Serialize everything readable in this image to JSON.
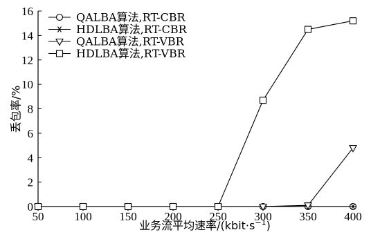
{
  "chart_data": {
    "type": "line",
    "x": [
      50,
      100,
      150,
      200,
      250,
      300,
      350,
      400
    ],
    "xlim": [
      50,
      400
    ],
    "ylim": [
      0,
      16
    ],
    "xticks": [
      50,
      100,
      150,
      200,
      250,
      300,
      350,
      400
    ],
    "yticks": [
      0,
      2,
      4,
      6,
      8,
      10,
      12,
      14,
      16
    ],
    "xlabel": "业务流平均速率/(kbit·s",
    "xlabel_sup": "−1",
    "xlabel_end": ")",
    "ylabel": "丢包率/%",
    "grid": false,
    "legend_position": "top-left",
    "series": [
      {
        "name": "QALBA算法,RT-CBR",
        "marker": "circle",
        "values": [
          0,
          0,
          0,
          0,
          0,
          0,
          0,
          0
        ]
      },
      {
        "name": "HDLBA算法,RT-CBR",
        "marker": "asterisk",
        "values": [
          0,
          0,
          0,
          0,
          0,
          0,
          0,
          0
        ]
      },
      {
        "name": "QALBA算法,RT-VBR",
        "marker": "triangle",
        "values": [
          0,
          0,
          0,
          0,
          0,
          0,
          0.1,
          4.8
        ]
      },
      {
        "name": "HDLBA算法,RT-VBR",
        "marker": "square",
        "values": [
          0,
          0,
          0,
          0,
          0,
          8.7,
          14.5,
          15.2
        ]
      }
    ]
  }
}
